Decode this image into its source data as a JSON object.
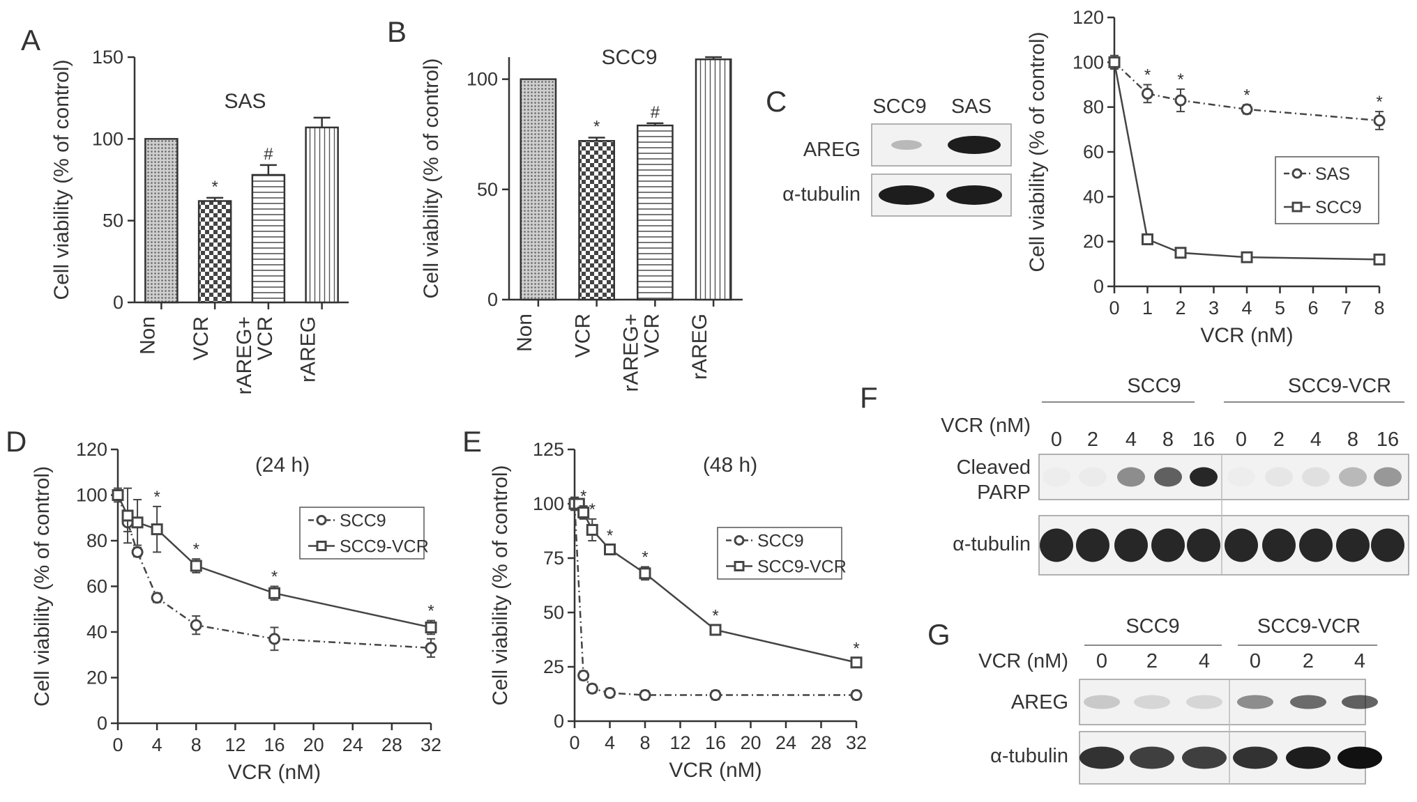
{
  "panel_labels": {
    "A": "A",
    "B": "B",
    "C": "C",
    "D": "D",
    "E": "E",
    "F": "F",
    "G": "G"
  },
  "chart_data": [
    {
      "panel": "A",
      "type": "bar",
      "title": "SAS",
      "ylabel": "Cell viability (% of control)",
      "ylim": [
        0,
        150
      ],
      "yticks": [
        0,
        50,
        100,
        150
      ],
      "categories": [
        "Non",
        "VCR",
        "rAREG+\nVCR",
        "rAREG"
      ],
      "values": [
        100,
        62,
        78,
        107
      ],
      "errors": [
        0,
        2,
        6,
        6
      ],
      "markers": [
        "",
        "*",
        "#",
        ""
      ]
    },
    {
      "panel": "B",
      "type": "bar",
      "title": "SCC9",
      "ylabel": "Cell viability (% of control)",
      "ylim": [
        0,
        110
      ],
      "yticks": [
        0,
        50,
        100
      ],
      "categories": [
        "Non",
        "VCR",
        "rAREG+\nVCR",
        "rAREG"
      ],
      "values": [
        100,
        72,
        79,
        109
      ],
      "errors": [
        0,
        1.5,
        1,
        1
      ],
      "markers": [
        "",
        "*",
        "#",
        ""
      ]
    },
    {
      "panel": "C",
      "type": "line",
      "xlabel": "VCR (nM)",
      "ylabel": "Cell viability (% of control)",
      "xlim": [
        0,
        8
      ],
      "ylim": [
        0,
        120
      ],
      "xticks": [
        0,
        1,
        2,
        3,
        4,
        5,
        6,
        7,
        8
      ],
      "yticks": [
        0,
        20,
        40,
        60,
        80,
        100,
        120
      ],
      "legend_position": "right",
      "series": [
        {
          "name": "SAS",
          "marker": "circle",
          "dash": true,
          "x": [
            0,
            1,
            2,
            4,
            8
          ],
          "y": [
            100,
            86,
            83,
            79,
            74
          ],
          "err": [
            3,
            4,
            5,
            2,
            4
          ],
          "stars": [
            false,
            true,
            true,
            true,
            true
          ]
        },
        {
          "name": "SCC9",
          "marker": "square",
          "dash": false,
          "x": [
            0,
            1,
            2,
            4,
            8
          ],
          "y": [
            100,
            21,
            15,
            13,
            12
          ],
          "err": [
            2,
            2,
            2,
            2,
            2
          ],
          "stars": [
            false,
            false,
            false,
            false,
            false
          ]
        }
      ]
    },
    {
      "panel": "D",
      "type": "line",
      "title": "(24 h)",
      "xlabel": "VCR (nM)",
      "ylabel": "Cell viability (% of control)",
      "xlim": [
        0,
        32
      ],
      "ylim": [
        0,
        120
      ],
      "xticks": [
        0,
        4,
        8,
        12,
        16,
        20,
        24,
        28,
        32
      ],
      "yticks": [
        0,
        20,
        40,
        60,
        80,
        100,
        120
      ],
      "legend_position": "right",
      "series": [
        {
          "name": "SCC9",
          "marker": "circle",
          "dash": true,
          "x": [
            0,
            1,
            2,
            4,
            8,
            16,
            32
          ],
          "y": [
            100,
            88,
            75,
            55,
            43,
            37,
            33
          ],
          "err": [
            2,
            4,
            2,
            2,
            4,
            5,
            4
          ],
          "stars": [
            false,
            false,
            false,
            false,
            false,
            false,
            false
          ]
        },
        {
          "name": "SCC9-VCR",
          "marker": "square",
          "dash": false,
          "x": [
            0,
            1,
            2,
            4,
            8,
            16,
            32
          ],
          "y": [
            100,
            91,
            88,
            85,
            69,
            57,
            42
          ],
          "err": [
            3,
            12,
            10,
            10,
            3,
            3,
            3
          ],
          "stars": [
            false,
            false,
            false,
            true,
            true,
            true,
            true
          ]
        }
      ]
    },
    {
      "panel": "E",
      "type": "line",
      "title": "(48 h)",
      "xlabel": "VCR (nM)",
      "ylabel": "Cell viability (% of control)",
      "xlim": [
        0,
        32
      ],
      "ylim": [
        0,
        125
      ],
      "xticks": [
        0,
        4,
        8,
        12,
        16,
        20,
        24,
        28,
        32
      ],
      "yticks": [
        0,
        25,
        50,
        75,
        100,
        125
      ],
      "legend_position": "right",
      "series": [
        {
          "name": "SCC9",
          "marker": "circle",
          "dash": true,
          "x": [
            0,
            1,
            2,
            4,
            8,
            16,
            32
          ],
          "y": [
            100,
            21,
            15,
            13,
            12,
            12,
            12
          ],
          "err": [
            2,
            2,
            2,
            2,
            2,
            2,
            2
          ],
          "stars": [
            false,
            false,
            false,
            false,
            false,
            false,
            false
          ]
        },
        {
          "name": "SCC9-VCR",
          "marker": "square",
          "dash": false,
          "x": [
            0,
            0.5,
            1,
            2,
            4,
            8,
            16,
            32
          ],
          "y": [
            100,
            100,
            96,
            88,
            79,
            68,
            42,
            27
          ],
          "err": [
            3,
            2,
            3,
            5,
            2,
            3,
            2,
            2
          ],
          "stars": [
            false,
            false,
            true,
            true,
            true,
            true,
            true,
            true
          ]
        }
      ]
    }
  ],
  "blots": {
    "C": {
      "lanes": [
        "SCC9",
        "SAS"
      ],
      "rows": [
        "AREG",
        "α-tubulin"
      ]
    },
    "F": {
      "groups": [
        "SCC9",
        "SCC9-VCR"
      ],
      "dose_label": "VCR (nM)",
      "doses": [
        "0",
        "2",
        "4",
        "8",
        "16",
        "0",
        "2",
        "4",
        "8",
        "16"
      ],
      "rows": [
        "Cleaved\nPARP",
        "α-tubulin"
      ]
    },
    "G": {
      "groups": [
        "SCC9",
        "SCC9-VCR"
      ],
      "dose_label": "VCR (nM)",
      "doses": [
        "0",
        "2",
        "4",
        "0",
        "2",
        "4"
      ],
      "rows": [
        "AREG",
        "α-tubulin"
      ]
    }
  }
}
